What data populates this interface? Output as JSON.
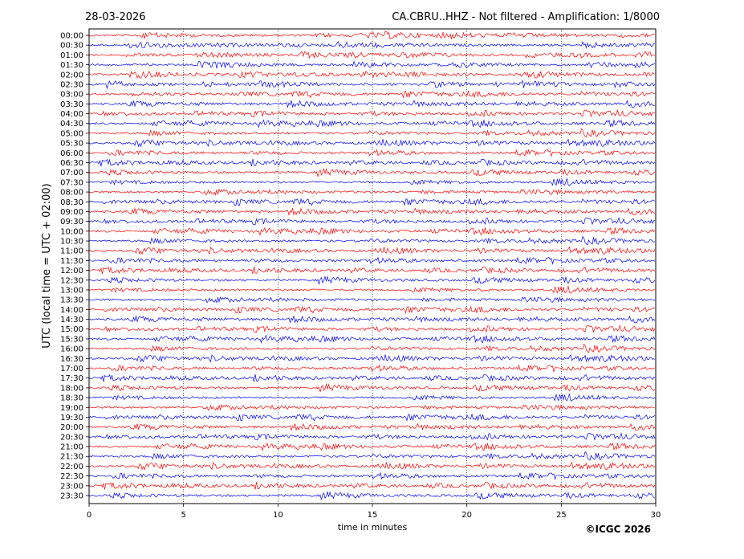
{
  "chart_data": {
    "type": "helicorder",
    "date": "28-03-2026",
    "title": "CA.CBRU..HHZ - Not filtered - Amplification: 1/8000",
    "ylabel": "UTC (local time = UTC + 02:00)",
    "xlabel": "time in minutes",
    "copyright": "©ICGC 2026",
    "rows": [
      "00:00",
      "00:30",
      "01:00",
      "01:30",
      "02:00",
      "02:30",
      "03:00",
      "03:30",
      "04:00",
      "04:30",
      "05:00",
      "05:30",
      "06:00",
      "06:30",
      "07:00",
      "07:30",
      "08:00",
      "08:30",
      "09:00",
      "09:30",
      "10:00",
      "10:30",
      "11:00",
      "11:30",
      "12:00",
      "12:30",
      "13:00",
      "13:30",
      "14:00",
      "14:30",
      "15:00",
      "15:30",
      "16:00",
      "16:30",
      "17:00",
      "17:30",
      "18:00",
      "18:30",
      "19:00",
      "19:30",
      "20:00",
      "20:30",
      "21:00",
      "21:30",
      "22:00",
      "22:30",
      "23:00",
      "23:30"
    ],
    "colors": [
      "#ff0000",
      "#0000ff"
    ],
    "xlim": [
      0,
      30
    ],
    "xticks": [
      0,
      5,
      10,
      15,
      20,
      25,
      30
    ],
    "grid": true
  }
}
